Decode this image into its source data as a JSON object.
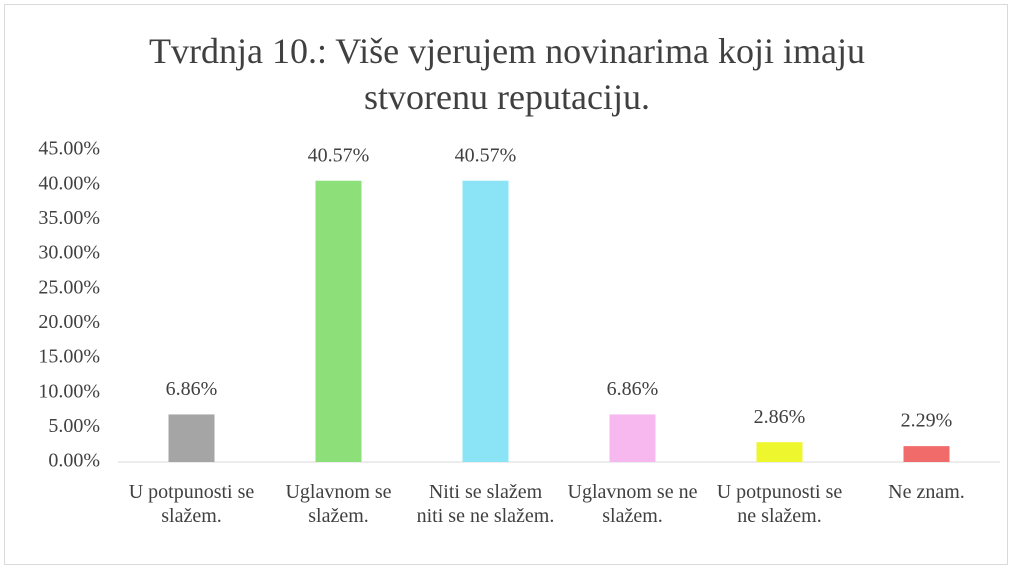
{
  "chart_data": {
    "type": "bar",
    "title": "Tvrdnja 10.: Više vjerujem novinarima koji imaju stvorenu reputaciju.",
    "categories": [
      "U potpunosti se slažem.",
      "Uglavnom se slažem.",
      "Niti se slažem niti se ne slažem.",
      "Uglavnom se ne slažem.",
      "U potpunosti se ne slažem.",
      "Ne znam."
    ],
    "values": [
      6.86,
      40.57,
      40.57,
      6.86,
      2.86,
      2.29
    ],
    "value_labels": [
      "6.86%",
      "40.57%",
      "40.57%",
      "6.86%",
      "2.86%",
      "2.29%"
    ],
    "colors": [
      "#a5a5a5",
      "#8ddf7a",
      "#8ae4f5",
      "#f7b7ef",
      "#eef72e",
      "#f26b6b"
    ],
    "ylim": [
      0,
      45
    ],
    "yticks": [
      {
        "value": 0,
        "label": "0.00%"
      },
      {
        "value": 5,
        "label": "5.00%"
      },
      {
        "value": 10,
        "label": "10.00%"
      },
      {
        "value": 15,
        "label": "15.00%"
      },
      {
        "value": 20,
        "label": "20.00%"
      },
      {
        "value": 25,
        "label": "25.00%"
      },
      {
        "value": 30,
        "label": "30.00%"
      },
      {
        "value": 35,
        "label": "35.00%"
      },
      {
        "value": 40,
        "label": "40.00%"
      },
      {
        "value": 45,
        "label": "45.00%"
      }
    ],
    "grid": false
  }
}
